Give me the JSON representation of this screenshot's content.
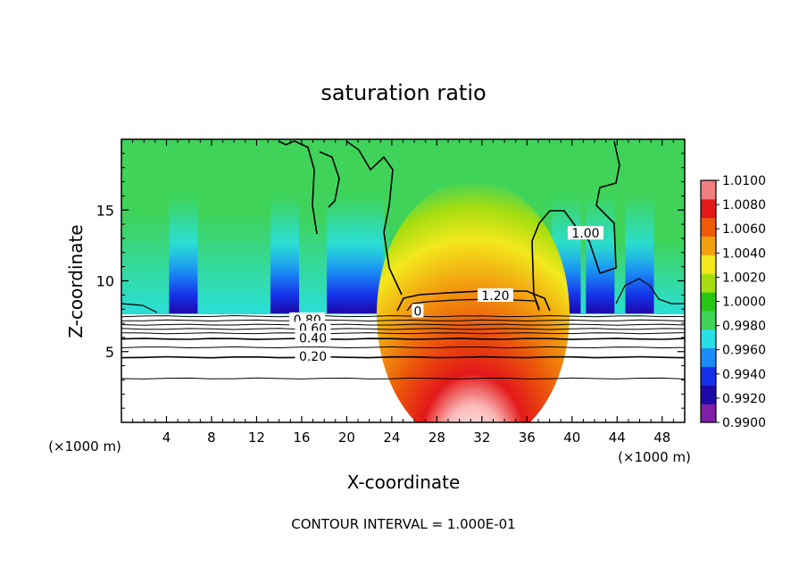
{
  "chart_data": {
    "type": "heatmap",
    "title": "saturation ratio",
    "xlabel": "X-coordinate",
    "ylabel": "Z-coordinate",
    "x_unit_left": "(×1000 m)",
    "x_unit_right": "(×1000 m)",
    "footer": "CONTOUR INTERVAL = 1.000E-01",
    "xlim": [
      0,
      50
    ],
    "ylim": [
      0,
      20
    ],
    "x_ticks": [
      4,
      8,
      12,
      16,
      20,
      24,
      28,
      32,
      36,
      40,
      44,
      48
    ],
    "y_ticks": [
      5,
      10,
      15
    ],
    "colorbar": {
      "min": 0.99,
      "max": 1.01,
      "tick_labels": [
        "0.9900",
        "0.9920",
        "0.9940",
        "0.9960",
        "0.9980",
        "1.0000",
        "1.0020",
        "1.0040",
        "1.0060",
        "1.0080",
        "1.0100"
      ],
      "colors": [
        "#7d1fa8",
        "#1d0aa8",
        "#1530e8",
        "#1a8cf5",
        "#27e0e6",
        "#3fd35a",
        "#27c814",
        "#a6dd10",
        "#f2e81c",
        "#f2a010",
        "#ec5a0a",
        "#e3191a",
        "#f07f7f"
      ]
    },
    "contour_labels": [
      {
        "text": "1.20",
        "x": 33.2,
        "z": 8.9
      },
      {
        "text": "1.00",
        "x": 41.2,
        "z": 13.3
      },
      {
        "text": "0.80",
        "x": 16.5,
        "z": 7.2
      },
      {
        "text": "0.60",
        "x": 17.0,
        "z": 6.6
      },
      {
        "text": "0.40",
        "x": 17.0,
        "z": 5.9
      },
      {
        "text": "0.20",
        "x": 17.0,
        "z": 4.6
      },
      {
        "text": "0",
        "x": 26.3,
        "z": 7.8
      }
    ],
    "contour_levels_z": [
      3.1,
      4.6,
      5.3,
      5.9,
      6.3,
      6.6,
      6.9,
      7.2,
      7.5
    ],
    "features": {
      "supersaturated_dome": {
        "x_center": 30.5,
        "z_base": 8.6,
        "z_top": 17.5,
        "max_value": 1.01
      },
      "subsaturated_spots": [
        5.5,
        14.5,
        19.5,
        22,
        39.5,
        42.5,
        46
      ]
    }
  }
}
